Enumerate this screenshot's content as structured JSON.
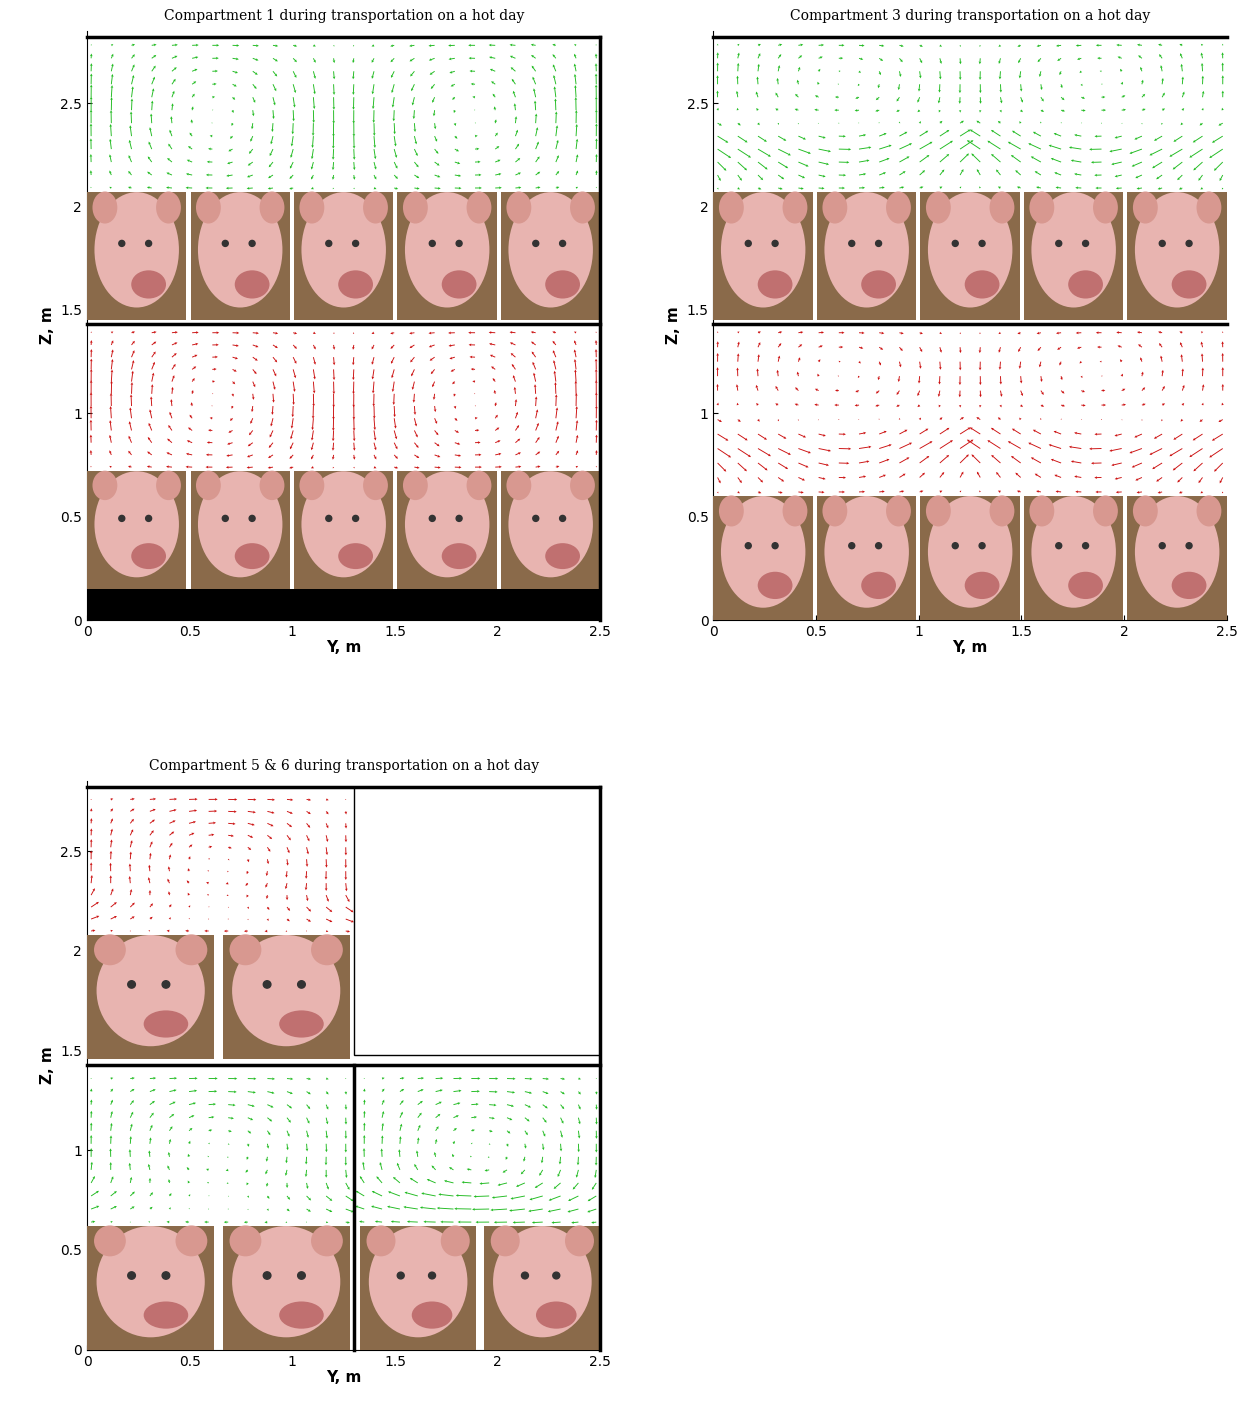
{
  "chart_data": [
    {
      "type": "quiver",
      "title": "Compartment 1 during transportation on a hot day",
      "x_label": "Y, m",
      "y_label": "Z, m",
      "xlim": [
        0,
        2.5
      ],
      "ylim": [
        0,
        2.85
      ],
      "xticks": [
        0,
        0.5,
        1,
        1.5,
        2,
        2.5
      ],
      "yticks": [
        0,
        0.5,
        1,
        1.5,
        2,
        2.5
      ]
    },
    {
      "type": "quiver",
      "title": "Compartment 3 during transportation on a hot day",
      "x_label": "Y, m",
      "y_label": "Z, m",
      "xlim": [
        0,
        2.5
      ],
      "ylim": [
        0,
        2.85
      ],
      "xticks": [
        0,
        0.5,
        1,
        1.5,
        2,
        2.5
      ],
      "yticks": [
        0,
        0.5,
        1,
        1.5,
        2,
        2.5
      ]
    },
    {
      "type": "quiver",
      "title": "Compartment 5 & 6 during transportation on a hot day",
      "x_label": "Y, m",
      "y_label": "Z, m",
      "xlim": [
        0,
        2.5
      ],
      "ylim": [
        0,
        2.85
      ],
      "xticks": [
        0,
        0.5,
        1,
        1.5,
        2,
        2.5
      ],
      "yticks": [
        0,
        0.5,
        1,
        1.5,
        2,
        2.5
      ]
    }
  ]
}
